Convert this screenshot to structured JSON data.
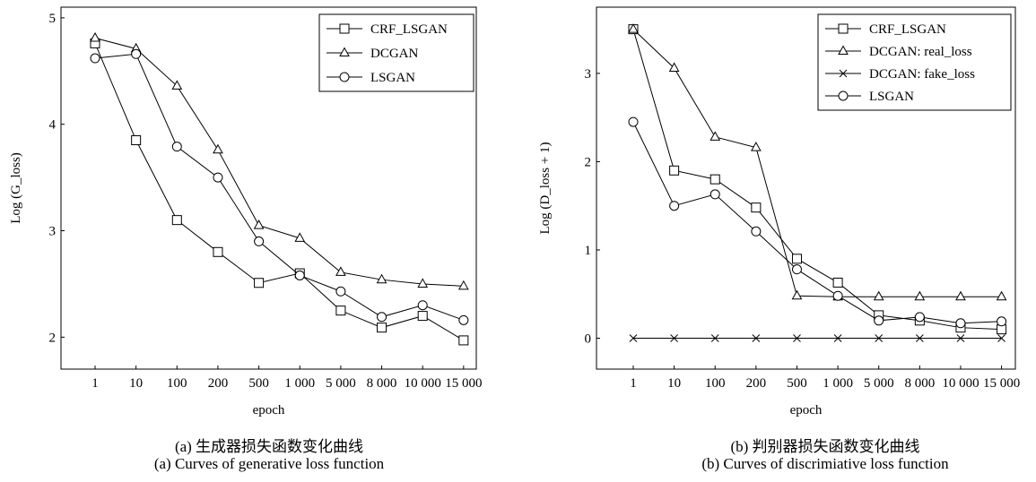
{
  "chart_data": [
    {
      "type": "line",
      "xlabel": "epoch",
      "ylabel": "Log (G_loss)",
      "categories": [
        "1",
        "10",
        "100",
        "200",
        "500",
        "1 000",
        "5 000",
        "8 000",
        "10 000",
        "15 000"
      ],
      "ylim": [
        1.7,
        5.1
      ],
      "yticks": [
        2,
        3,
        4,
        5
      ],
      "grid": false,
      "legend_position": "top-right",
      "series": [
        {
          "name": "CRF_LSGAN",
          "marker": "square",
          "values": [
            4.76,
            3.85,
            3.1,
            2.8,
            2.51,
            2.6,
            2.25,
            2.09,
            2.2,
            1.97
          ]
        },
        {
          "name": "DCGAN",
          "marker": "triangle",
          "values": [
            4.81,
            4.71,
            4.36,
            3.76,
            3.05,
            2.93,
            2.61,
            2.54,
            2.5,
            2.48
          ]
        },
        {
          "name": "LSGAN",
          "marker": "circle",
          "values": [
            4.62,
            4.66,
            3.79,
            3.5,
            2.9,
            2.58,
            2.43,
            2.19,
            2.3,
            2.16
          ]
        }
      ],
      "caption_cn": "(a) 生成器损失函数变化曲线",
      "caption_en": "(a) Curves of generative loss function"
    },
    {
      "type": "line",
      "xlabel": "epoch",
      "ylabel": "Log (D_loss + 1)",
      "categories": [
        "1",
        "10",
        "100",
        "200",
        "500",
        "1 000",
        "5 000",
        "8 000",
        "10 000",
        "15 000"
      ],
      "ylim": [
        -0.35,
        3.75
      ],
      "yticks": [
        0,
        1,
        2,
        3
      ],
      "grid": false,
      "legend_position": "top-right",
      "series": [
        {
          "name": "CRF_LSGAN",
          "marker": "square",
          "values": [
            3.5,
            1.9,
            1.8,
            1.48,
            0.9,
            0.63,
            0.26,
            0.2,
            0.12,
            0.1
          ]
        },
        {
          "name": "DCGAN: real_loss",
          "marker": "triangle",
          "values": [
            3.5,
            3.06,
            2.28,
            2.16,
            0.48,
            0.47,
            0.47,
            0.47,
            0.47,
            0.47
          ]
        },
        {
          "name": "DCGAN: fake_loss",
          "marker": "x",
          "values": [
            0,
            0,
            0,
            0,
            0,
            0,
            0,
            0,
            0,
            0
          ]
        },
        {
          "name": "LSGAN",
          "marker": "circle",
          "values": [
            2.45,
            1.5,
            1.63,
            1.21,
            0.78,
            0.48,
            0.2,
            0.24,
            0.17,
            0.19
          ]
        }
      ],
      "caption_cn": "(b) 判别器损失函数变化曲线",
      "caption_en": "(b) Curves of discrimiative loss function"
    }
  ]
}
